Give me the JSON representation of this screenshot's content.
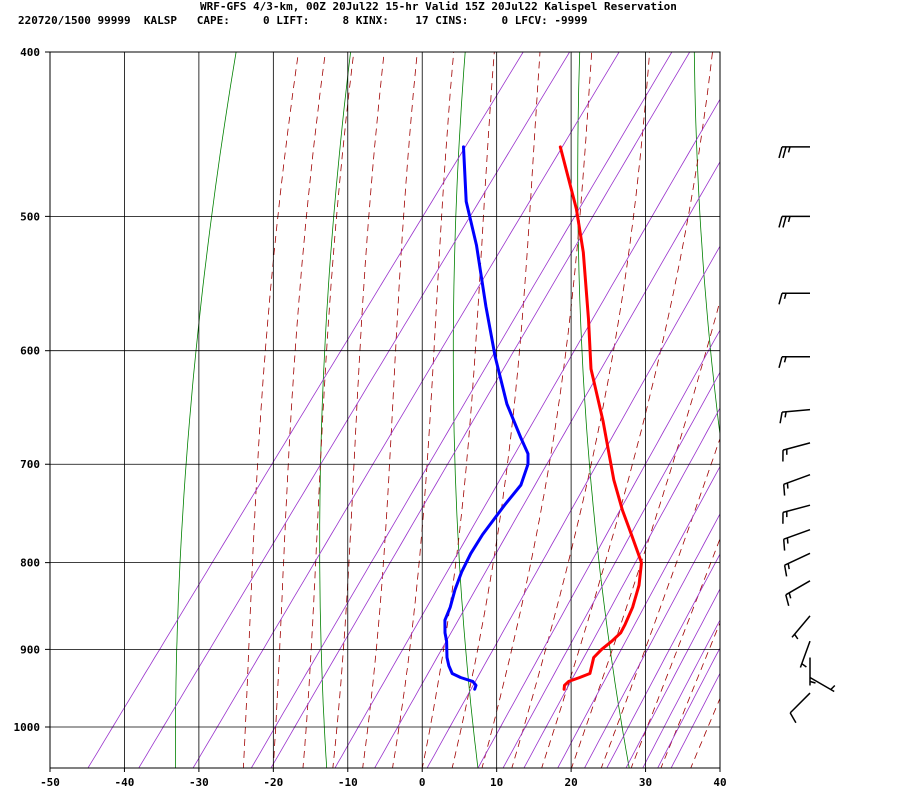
{
  "header": {
    "line1": "WRF-GFS 4/3-km, 00Z 20Jul22 15-hr Valid 15Z 20Jul22 Kalispel Reservation",
    "line2": "220720/1500 99999  KALSP   CAPE:     0 LIFT:     8 KINX:    17 CINS:     0 LFCV: -9999"
  },
  "colors": {
    "temperature": "#ff0000",
    "dewpoint": "#0000ff",
    "isotherm": "#000000",
    "dry_adiabat": "#008000",
    "moist_adiabat": "#a00000",
    "mixing_ratio": "#9932cc",
    "wind_barb": "#000000"
  },
  "chart_data": {
    "type": "line",
    "title": "",
    "subtitle": "",
    "xlabel": "",
    "ylabel": "",
    "xlim": [
      -50,
      40
    ],
    "ylim": [
      1050,
      400
    ],
    "y_scale": "log",
    "x_ticks": [
      "-50",
      "-40",
      "-30",
      "-20",
      "-10",
      "0",
      "10",
      "20",
      "30",
      "40"
    ],
    "y_ticks": [
      "400",
      "500",
      "600",
      "700",
      "800",
      "900",
      "1000"
    ],
    "grid": true,
    "legend": "none",
    "series": [
      {
        "key": "temperature",
        "points": [
          [
            15.5,
            950
          ],
          [
            15.2,
            945
          ],
          [
            15.4,
            940
          ],
          [
            16.5,
            935
          ],
          [
            17.5,
            930
          ],
          [
            17.0,
            920
          ],
          [
            16.5,
            910
          ],
          [
            16.8,
            900
          ],
          [
            17.4,
            890
          ],
          [
            17.8,
            880
          ],
          [
            17.6,
            870
          ],
          [
            17.0,
            850
          ],
          [
            15.8,
            825
          ],
          [
            14.0,
            800
          ],
          [
            10.0,
            770
          ],
          [
            6.5,
            745
          ],
          [
            2.5,
            715
          ],
          [
            -4.5,
            660
          ],
          [
            -11.0,
            615
          ],
          [
            -16.0,
            575
          ],
          [
            -23.0,
            525
          ],
          [
            -28.0,
            495
          ],
          [
            -36.0,
            455
          ]
        ]
      },
      {
        "key": "dewpoint",
        "points": [
          [
            3.5,
            950
          ],
          [
            3.3,
            945
          ],
          [
            2.5,
            940
          ],
          [
            0.5,
            935
          ],
          [
            -1.0,
            930
          ],
          [
            -2.2,
            920
          ],
          [
            -3.2,
            910
          ],
          [
            -4.0,
            900
          ],
          [
            -4.8,
            890
          ],
          [
            -5.8,
            880
          ],
          [
            -7.0,
            865
          ],
          [
            -7.5,
            850
          ],
          [
            -8.5,
            830
          ],
          [
            -9.3,
            810
          ],
          [
            -9.8,
            790
          ],
          [
            -10.0,
            770
          ],
          [
            -9.8,
            740
          ],
          [
            -9.5,
            720
          ],
          [
            -10.5,
            700
          ],
          [
            -11.5,
            690
          ],
          [
            -14.0,
            675
          ],
          [
            -19.0,
            645
          ],
          [
            -25.0,
            605
          ],
          [
            -31.0,
            565
          ],
          [
            -38.0,
            520
          ],
          [
            -43.5,
            490
          ],
          [
            -49.0,
            455
          ]
        ]
      }
    ],
    "wind_barbs": [
      {
        "pressure": 955,
        "speed": 10,
        "direction": 225
      },
      {
        "pressure": 935,
        "speed": 5,
        "direction": 120
      },
      {
        "pressure": 910,
        "speed": 5,
        "direction": 180
      },
      {
        "pressure": 890,
        "speed": 5,
        "direction": 200
      },
      {
        "pressure": 860,
        "speed": 5,
        "direction": 220
      },
      {
        "pressure": 820,
        "speed": 15,
        "direction": 240
      },
      {
        "pressure": 790,
        "speed": 15,
        "direction": 245
      },
      {
        "pressure": 765,
        "speed": 15,
        "direction": 250
      },
      {
        "pressure": 740,
        "speed": 15,
        "direction": 255
      },
      {
        "pressure": 710,
        "speed": 15,
        "direction": 250
      },
      {
        "pressure": 680,
        "speed": 15,
        "direction": 255
      },
      {
        "pressure": 650,
        "speed": 15,
        "direction": 265
      },
      {
        "pressure": 605,
        "speed": 15,
        "direction": 270
      },
      {
        "pressure": 555,
        "speed": 15,
        "direction": 270
      },
      {
        "pressure": 500,
        "speed": 25,
        "direction": 270
      },
      {
        "pressure": 455,
        "speed": 25,
        "direction": 270
      }
    ]
  }
}
